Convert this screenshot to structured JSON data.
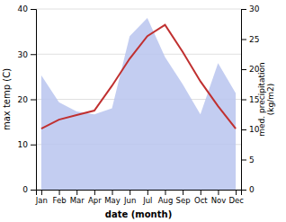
{
  "chart_data": {
    "type": "line",
    "categories": [
      "Jan",
      "Feb",
      "Mar",
      "Apr",
      "May",
      "Jun",
      "Jul",
      "Aug",
      "Sep",
      "Oct",
      "Nov",
      "Dec"
    ],
    "xlabel": "date (month)",
    "ylabel": "max temp (C)",
    "y2label": "med. precipitation\n(kg/m2)",
    "ylim": [
      0,
      40
    ],
    "yticks": [
      0,
      10,
      20,
      30,
      40
    ],
    "y2lim": [
      0,
      30
    ],
    "y2ticks": [
      0,
      5,
      10,
      15,
      20,
      25,
      30
    ],
    "grid": true,
    "series": [
      {
        "type": "area",
        "axis": "y2",
        "color": "#b8c4ee",
        "values": [
          19.0,
          14.5,
          13.0,
          12.5,
          13.5,
          25.5,
          28.5,
          22.0,
          17.5,
          12.5,
          21.0,
          16.0
        ]
      },
      {
        "type": "line",
        "color": "#c03030",
        "values": [
          13.5,
          15.5,
          16.5,
          17.5,
          23.0,
          29.0,
          34.0,
          36.5,
          30.5,
          24.0,
          18.5,
          13.5
        ]
      }
    ]
  }
}
